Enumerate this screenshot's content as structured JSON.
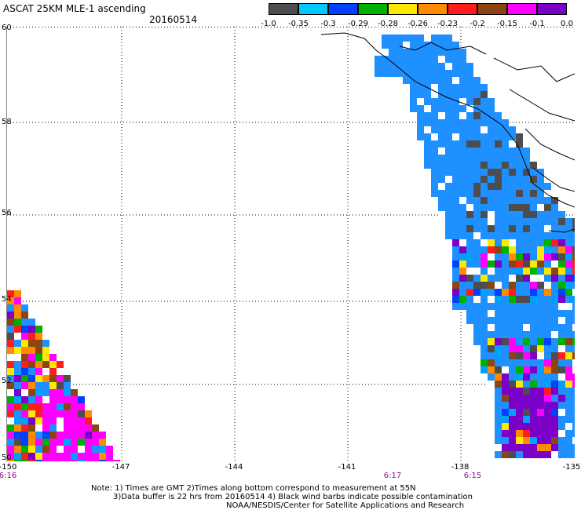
{
  "header": {
    "title": "ASCAT 25KM MLE-1 ascending",
    "date": "20160514"
  },
  "legend": {
    "tick_labels": [
      "-1.0",
      "-0.35",
      "-0.3",
      "-0.29",
      "-0.28",
      "-0.26",
      "-0.23",
      "-0.2",
      "-0.15",
      "-0.1",
      "0.0"
    ],
    "colors": [
      "#4d4d4d",
      "#00c8ff",
      "#0040ff",
      "#00b000",
      "#ffe800",
      "#ff8c00",
      "#ff1c1c",
      "#8b4513",
      "#ff00ff",
      "#7b00c8"
    ]
  },
  "axes": {
    "lat_labels": [
      "60",
      "58",
      "56",
      "54",
      "52",
      "50"
    ],
    "lon_labels": [
      "-150",
      "-147",
      "-144",
      "-141",
      "-138",
      "-135"
    ],
    "time_labels": [
      "6:16",
      "6:17",
      "6:15"
    ]
  },
  "notes": {
    "line1": "Note: 1) Times are GMT 2)Times along bottom correspond to measurement at 55N",
    "line2": "3)Data buffer is 22 hrs from 20160514 4) Black wind barbs indicate possible contamination",
    "line3": "NOAA/NESDIS/Center for Satellite Applications and Research"
  },
  "map_colors": {
    "ocean_blue": "#1e90ff",
    "dark_gray": "#4d4d4d",
    "coast": "#000000"
  }
}
